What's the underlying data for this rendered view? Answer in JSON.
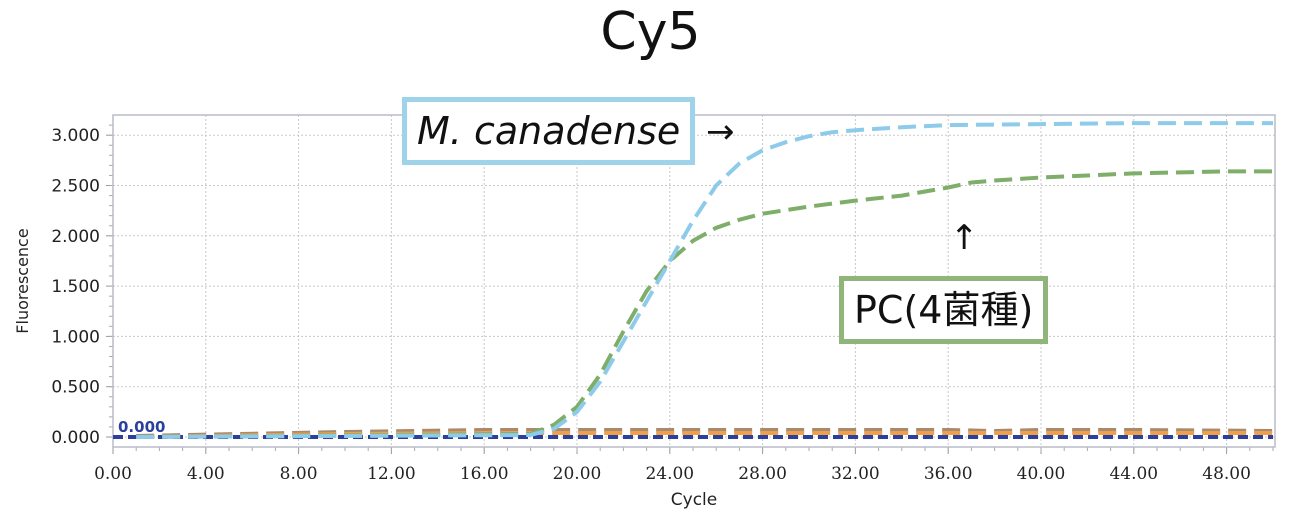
{
  "chart_data": {
    "type": "line",
    "title": "Cy5",
    "xlabel": "Cycle",
    "ylabel": "Fluorescence",
    "xlim": [
      0,
      50
    ],
    "ylim": [
      -0.1,
      3.2
    ],
    "xticks": [
      "0.00",
      "4.00",
      "8.00",
      "12.00",
      "16.00",
      "20.00",
      "24.00",
      "28.00",
      "32.00",
      "36.00",
      "40.00",
      "44.00",
      "48.00"
    ],
    "yticks": [
      "0.000",
      "0.500",
      "1.000",
      "1.500",
      "2.000",
      "2.500",
      "3.000"
    ],
    "grid": true,
    "threshold_label": "0.000",
    "series": [
      {
        "name": "M. canadense",
        "color": "#8ecbea",
        "x": [
          1,
          18,
          19,
          20,
          21,
          22,
          23,
          24,
          25,
          26,
          27,
          28,
          29,
          30,
          31,
          32,
          34,
          36,
          40,
          44,
          50
        ],
        "y": [
          0,
          0.02,
          0.08,
          0.25,
          0.55,
          0.95,
          1.35,
          1.75,
          2.15,
          2.5,
          2.72,
          2.85,
          2.93,
          2.99,
          3.03,
          3.05,
          3.08,
          3.1,
          3.11,
          3.12,
          3.12
        ]
      },
      {
        "name": "PC(4菌種)",
        "color": "#7fae6a",
        "x": [
          1,
          18,
          19,
          20,
          21,
          22,
          23,
          24,
          25,
          26,
          27,
          28,
          30,
          32,
          34,
          35,
          36,
          37,
          38,
          40,
          44,
          48,
          50
        ],
        "y": [
          0,
          0.03,
          0.12,
          0.3,
          0.62,
          1.05,
          1.45,
          1.75,
          1.95,
          2.08,
          2.16,
          2.22,
          2.29,
          2.35,
          2.4,
          2.44,
          2.48,
          2.53,
          2.55,
          2.58,
          2.62,
          2.64,
          2.64
        ]
      },
      {
        "name": "baseline-brown",
        "color": "#a88a6e",
        "x": [
          1,
          10,
          16,
          20,
          30,
          36,
          38,
          40,
          44,
          50
        ],
        "y": [
          0.01,
          0.05,
          0.07,
          0.07,
          0.07,
          0.07,
          0.06,
          0.07,
          0.07,
          0.06
        ]
      },
      {
        "name": "baseline-orange",
        "color": "#f0a04a",
        "x": [
          1,
          10,
          16,
          20,
          30,
          40,
          50
        ],
        "y": [
          0.0,
          0.03,
          0.04,
          0.04,
          0.04,
          0.04,
          0.04
        ]
      },
      {
        "name": "baseline-navy",
        "color": "#2b3f9e",
        "x": [
          0,
          50
        ],
        "y": [
          0,
          0
        ]
      }
    ]
  },
  "annotations": {
    "m_label": "M. canadense",
    "pc_label": "PC(4菌種)",
    "right_arrow": "→",
    "up_arrow": "↑"
  }
}
